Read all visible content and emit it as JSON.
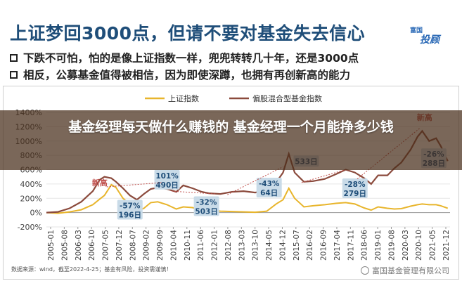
{
  "header": {
    "title": "上证梦回3000点，但请不要对基金失去信心",
    "bullets": [
      "下跌不可怕，怕的是像上证指数一样，兜兜转转几十年，还是3000点",
      "相反，公募基金值得被相信，因为即使深蹲，也拥有再创新高的能力"
    ],
    "logo_top": "富国",
    "logo_main": "投顾"
  },
  "overlay": {
    "text": "基金经理每天做什么赚钱的 基金经理一个月能挣多少钱"
  },
  "footer": {
    "note": "数据来源：wind，截至2022-4-25；基金有风险，投资需谨慎！",
    "brand": "富国基金管理有限公司"
  },
  "colors": {
    "sse": "#e8b52c",
    "fund": "#8b4a3c",
    "annotation_box": "#c9dbe8",
    "new_high": "#c0504d",
    "title": "#1f4e79"
  },
  "chart_data": {
    "type": "line",
    "legend": [
      "上证指数",
      "偏股混合型基金指数"
    ],
    "legend_position": "top",
    "ylim": [
      -200,
      1400
    ],
    "yticks": [
      "-200%",
      "0%",
      "200%",
      "400%",
      "600%",
      "800%",
      "1000%",
      "1200%",
      "1400%"
    ],
    "xticks": [
      "2005-01",
      "2005-08",
      "2006-03",
      "2006-10",
      "2007-05",
      "2007-12",
      "2008-07",
      "2009-02",
      "2009-09",
      "2010-04",
      "2010-11",
      "2011-06",
      "2012-01",
      "2012-08",
      "2013-03",
      "2013-10",
      "2014-05",
      "2014-12",
      "2015-07",
      "2016-02",
      "2016-09",
      "2017-04",
      "2017-11",
      "2018-06",
      "2019-01",
      "2019-08",
      "2020-03",
      "2020-10",
      "2021-05",
      "2021-12"
    ],
    "x": [
      2005.0,
      2005.5,
      2006.0,
      2006.5,
      2007.0,
      2007.3,
      2007.5,
      2007.8,
      2008.0,
      2008.3,
      2008.6,
      2008.9,
      2009.2,
      2009.5,
      2009.8,
      2010.2,
      2010.6,
      2010.9,
      2011.3,
      2011.7,
      2012.0,
      2012.5,
      2013.0,
      2013.5,
      2014.0,
      2014.5,
      2014.9,
      2015.2,
      2015.45,
      2015.7,
      2016.1,
      2016.5,
      2017.0,
      2017.5,
      2017.9,
      2018.3,
      2018.7,
      2019.0,
      2019.3,
      2019.7,
      2020.0,
      2020.3,
      2020.7,
      2021.0,
      2021.2,
      2021.5,
      2021.8,
      2022.0,
      2022.3
    ],
    "series": [
      {
        "name": "上证指数",
        "values": [
          0,
          -10,
          10,
          40,
          110,
          190,
          240,
          390,
          350,
          200,
          120,
          20,
          60,
          140,
          150,
          110,
          50,
          80,
          70,
          30,
          40,
          20,
          15,
          10,
          5,
          20,
          120,
          180,
          340,
          200,
          80,
          95,
          110,
          130,
          140,
          120,
          65,
          35,
          80,
          60,
          50,
          55,
          90,
          110,
          120,
          110,
          110,
          95,
          60
        ]
      },
      {
        "name": "偏股混合型基金指数",
        "values": [
          0,
          10,
          60,
          150,
          300,
          460,
          500,
          480,
          430,
          340,
          240,
          180,
          260,
          330,
          350,
          330,
          290,
          380,
          340,
          290,
          270,
          260,
          290,
          300,
          280,
          310,
          420,
          560,
          820,
          560,
          430,
          440,
          470,
          540,
          600,
          560,
          480,
          400,
          520,
          520,
          620,
          700,
          880,
          1060,
          1140,
          1000,
          1040,
          930,
          720
        ]
      }
    ],
    "annotations": [
      {
        "label": "新高"
      },
      {
        "label": "-57%",
        "sub": "196日"
      },
      {
        "label": "101%",
        "sub": "490日"
      },
      {
        "label": "-32%",
        "sub": "503日"
      },
      {
        "label": "-43%",
        "sub": "64日"
      },
      {
        "label": "533日"
      },
      {
        "label": "-28%",
        "sub": "279日"
      },
      {
        "label": "新高"
      },
      {
        "label": "-26%",
        "sub": "288日"
      }
    ]
  }
}
